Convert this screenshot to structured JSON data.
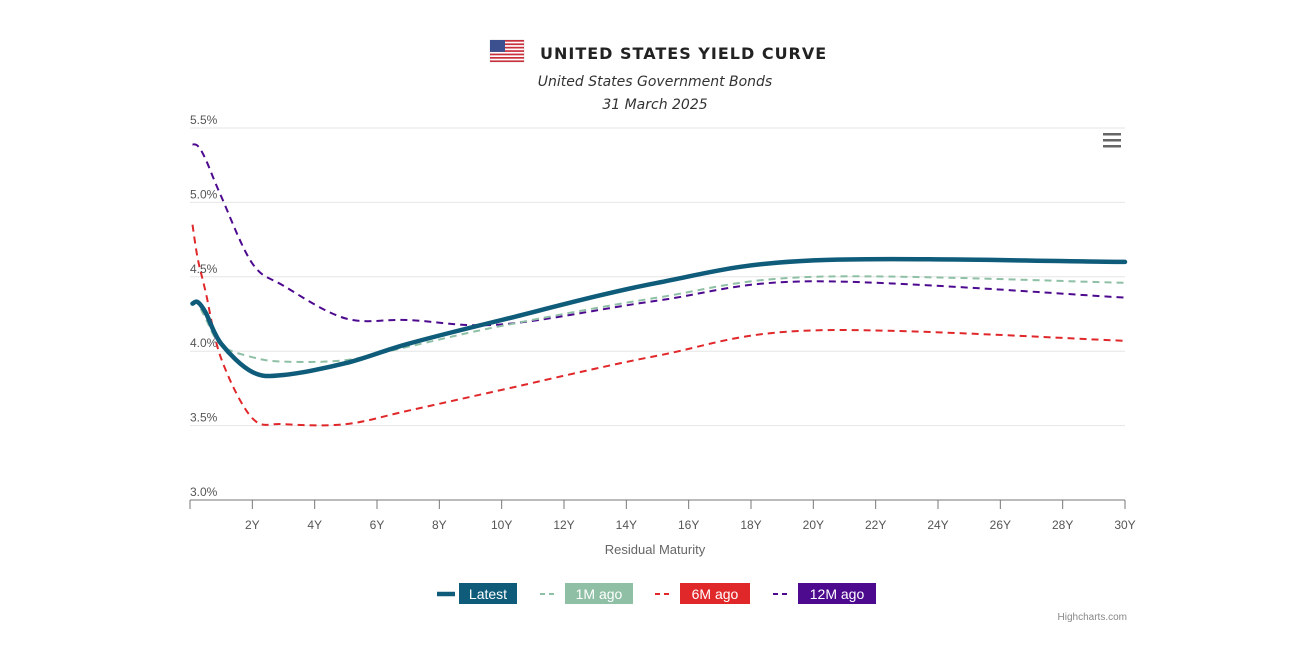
{
  "chart_data": {
    "type": "line",
    "title": "UNITED STATES YIELD CURVE",
    "subtitle_lines": [
      "United States Government Bonds",
      "31 March 2025"
    ],
    "xlabel": "Residual Maturity",
    "ylabel": "",
    "xlim": [
      0,
      30
    ],
    "ylim": [
      3.0,
      5.5
    ],
    "x_ticks": [
      {
        "value": 2,
        "label": "2Y"
      },
      {
        "value": 4,
        "label": "4Y"
      },
      {
        "value": 6,
        "label": "6Y"
      },
      {
        "value": 8,
        "label": "8Y"
      },
      {
        "value": 10,
        "label": "10Y"
      },
      {
        "value": 12,
        "label": "12Y"
      },
      {
        "value": 14,
        "label": "14Y"
      },
      {
        "value": 16,
        "label": "16Y"
      },
      {
        "value": 18,
        "label": "18Y"
      },
      {
        "value": 20,
        "label": "20Y"
      },
      {
        "value": 22,
        "label": "22Y"
      },
      {
        "value": 24,
        "label": "24Y"
      },
      {
        "value": 26,
        "label": "26Y"
      },
      {
        "value": 28,
        "label": "28Y"
      },
      {
        "value": 30,
        "label": "30Y"
      }
    ],
    "y_ticks": [
      {
        "value": 3.0,
        "label": "3.0%"
      },
      {
        "value": 3.5,
        "label": "3.5%"
      },
      {
        "value": 4.0,
        "label": "4.0%"
      },
      {
        "value": 4.5,
        "label": "4.5%"
      },
      {
        "value": 5.0,
        "label": "5.0%"
      },
      {
        "value": 5.5,
        "label": "5.5%"
      }
    ],
    "grid": true,
    "legend_position": "bottom-center",
    "series": [
      {
        "name": "Latest",
        "color": "#0e5b7a",
        "dash": "solid",
        "x": [
          0.08,
          0.25,
          0.5,
          1,
          2,
          3,
          5,
          7,
          10,
          15,
          20,
          30
        ],
        "y": [
          4.32,
          4.33,
          4.26,
          4.05,
          3.86,
          3.84,
          3.92,
          4.05,
          4.21,
          4.46,
          4.61,
          4.6
        ]
      },
      {
        "name": "1M ago",
        "color": "#8fc0a6",
        "dash": "dashed",
        "x": [
          0.08,
          0.25,
          0.5,
          1,
          2,
          3,
          5,
          7,
          10,
          15,
          20,
          30
        ],
        "y": [
          4.33,
          4.32,
          4.22,
          4.04,
          3.96,
          3.93,
          3.94,
          4.03,
          4.17,
          4.36,
          4.5,
          4.46
        ]
      },
      {
        "name": "6M ago",
        "color": "#e0282b",
        "dash": "dashed",
        "x": [
          0.08,
          0.25,
          0.5,
          1,
          2,
          3,
          5,
          7,
          10,
          15,
          20,
          30
        ],
        "y": [
          4.85,
          4.62,
          4.4,
          3.95,
          3.55,
          3.51,
          3.51,
          3.6,
          3.74,
          3.97,
          4.14,
          4.07
        ]
      },
      {
        "name": "12M ago",
        "color": "#4d0a8f",
        "dash": "dashed",
        "x": [
          0.08,
          0.25,
          0.5,
          1,
          2,
          3,
          5,
          7,
          10,
          15,
          20,
          30
        ],
        "y": [
          5.39,
          5.38,
          5.29,
          5.04,
          4.59,
          4.44,
          4.22,
          4.21,
          4.18,
          4.34,
          4.47,
          4.36
        ]
      }
    ]
  },
  "ui": {
    "menu_icon": "hamburger-menu-icon",
    "flag_icon": "us-flag-icon",
    "credit": "Highcharts.com"
  }
}
